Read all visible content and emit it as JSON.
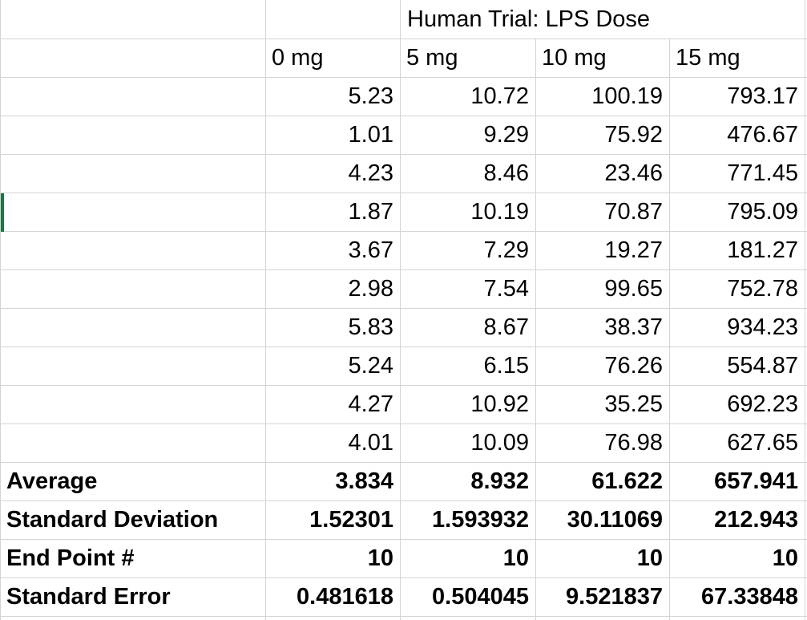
{
  "colors": {
    "selection_green": "#217346",
    "gridline": "#d4d4d4",
    "text": "#000000",
    "background": "#ffffff"
  },
  "table": {
    "title": "Human Trial: LPS Dose",
    "dose_headers": [
      "0 mg",
      "5 mg",
      "10 mg",
      "15 mg"
    ],
    "data_rows": [
      [
        "5.23",
        "10.72",
        "100.19",
        "793.17"
      ],
      [
        "1.01",
        "9.29",
        "75.92",
        "476.67"
      ],
      [
        "4.23",
        "8.46",
        "23.46",
        "771.45"
      ],
      [
        "1.87",
        "10.19",
        "70.87",
        "795.09"
      ],
      [
        "3.67",
        "7.29",
        "19.27",
        "181.27"
      ],
      [
        "2.98",
        "7.54",
        "99.65",
        "752.78"
      ],
      [
        "5.83",
        "8.67",
        "38.37",
        "934.23"
      ],
      [
        "5.24",
        "6.15",
        "76.26",
        "554.87"
      ],
      [
        "4.27",
        "10.92",
        "35.25",
        "692.23"
      ],
      [
        "4.01",
        "10.09",
        "76.98",
        "627.65"
      ]
    ],
    "summary_rows": [
      {
        "label": "Average",
        "values": [
          "3.834",
          "8.932",
          "61.622",
          "657.941"
        ]
      },
      {
        "label": "Standard Deviation",
        "values": [
          "1.52301",
          "1.593932",
          "30.11069",
          "212.943"
        ]
      },
      {
        "label": "End Point #",
        "values": [
          "10",
          "10",
          "10",
          "10"
        ]
      },
      {
        "label": "Standard Error",
        "values": [
          "0.481618",
          "0.504045",
          "9.521837",
          "67.33848"
        ]
      }
    ]
  }
}
